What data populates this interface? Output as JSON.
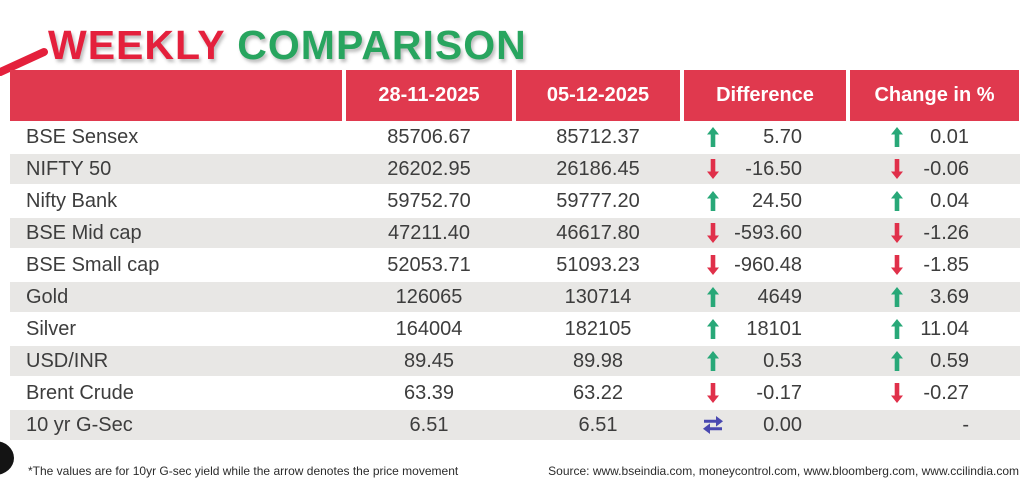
{
  "title": {
    "part1": "WEEKLY",
    "part2": "COMPARISON"
  },
  "colors": {
    "header_bg": "#E0394E",
    "title_red": "#E4203C",
    "title_green": "#28A55F",
    "row_alt_bg": "#E8E7E5",
    "arrow_up": "#28A878",
    "arrow_down": "#E0304A",
    "arrow_both": "#4948B0",
    "text": "#3d3d3d"
  },
  "chart_data": {
    "type": "table",
    "title": "WEEKLY COMPARISON",
    "columns": [
      "",
      "28-11-2025",
      "05-12-2025",
      "Difference",
      "Change in %"
    ],
    "rows": [
      {
        "name": "BSE Sensex",
        "prev": "85706.67",
        "curr": "85712.37",
        "diff": "5.70",
        "diff_dir": "up",
        "change": "0.01",
        "change_dir": "up"
      },
      {
        "name": "NIFTY 50",
        "prev": "26202.95",
        "curr": "26186.45",
        "diff": "-16.50",
        "diff_dir": "down",
        "change": "-0.06",
        "change_dir": "down"
      },
      {
        "name": "Nifty Bank",
        "prev": "59752.70",
        "curr": "59777.20",
        "diff": "24.50",
        "diff_dir": "up",
        "change": "0.04",
        "change_dir": "up"
      },
      {
        "name": "BSE Mid cap",
        "prev": "47211.40",
        "curr": "46617.80",
        "diff": "-593.60",
        "diff_dir": "down",
        "change": "-1.26",
        "change_dir": "down"
      },
      {
        "name": "BSE Small cap",
        "prev": "52053.71",
        "curr": "51093.23",
        "diff": "-960.48",
        "diff_dir": "down",
        "change": "-1.85",
        "change_dir": "down"
      },
      {
        "name": "Gold",
        "prev": "126065",
        "curr": "130714",
        "diff": "4649",
        "diff_dir": "up",
        "change": "3.69",
        "change_dir": "up"
      },
      {
        "name": "Silver",
        "prev": "164004",
        "curr": "182105",
        "diff": "18101",
        "diff_dir": "up",
        "change": "11.04",
        "change_dir": "up"
      },
      {
        "name": "USD/INR",
        "prev": "89.45",
        "curr": "89.98",
        "diff": "0.53",
        "diff_dir": "up",
        "change": "0.59",
        "change_dir": "up"
      },
      {
        "name": "Brent Crude",
        "prev": "63.39",
        "curr": "63.22",
        "diff": "-0.17",
        "diff_dir": "down",
        "change": "-0.27",
        "change_dir": "down"
      },
      {
        "name": "10 yr G-Sec",
        "prev": "6.51",
        "curr": "6.51",
        "diff": "0.00",
        "diff_dir": "both",
        "change": "-",
        "change_dir": "none"
      }
    ]
  },
  "footer": {
    "note": "*The values are for 10yr G-sec yield while the arrow denotes the price movement",
    "source": "Source: www.bseindia.com, moneycontrol.com, www.bloomberg.com, www.ccilindia.com"
  }
}
